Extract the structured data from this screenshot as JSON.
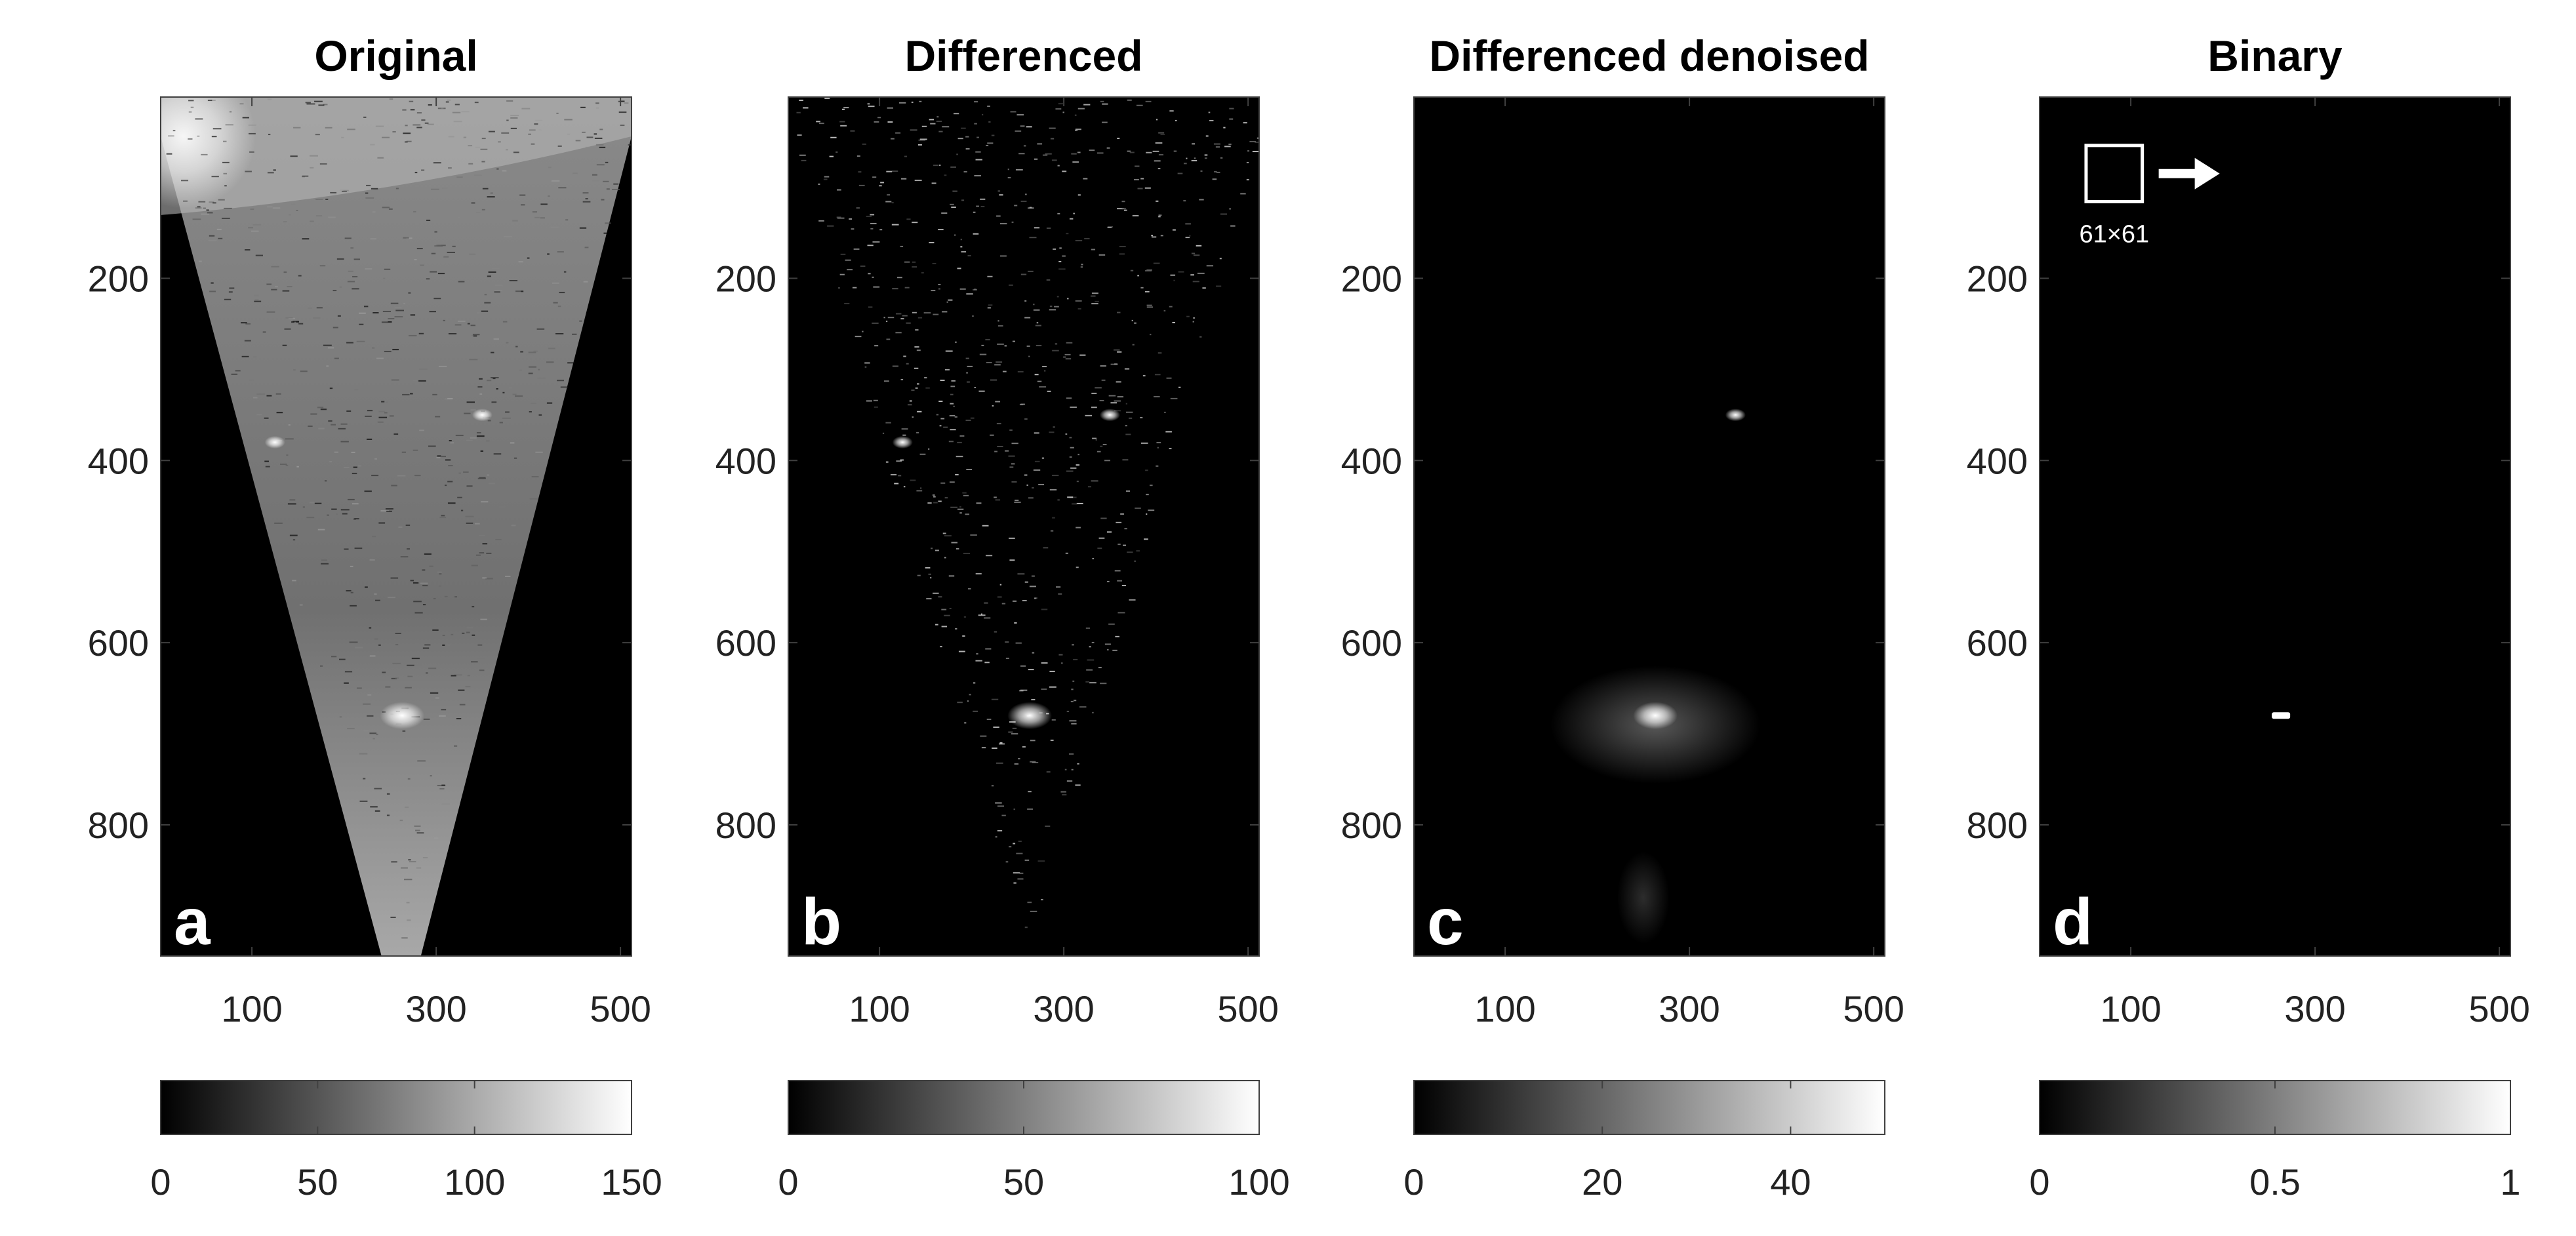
{
  "chart_data": [
    {
      "type": "heatmap",
      "title": "Original",
      "panel_label": "a",
      "xticks": [
        100,
        300,
        500
      ],
      "yticks": [
        200,
        400,
        600,
        800
      ],
      "xlim": [
        1,
        512
      ],
      "ylim": [
        1,
        944
      ],
      "colormap": "gray",
      "colorbar": {
        "min": 0,
        "max": 150,
        "ticks": [
          "0",
          "50",
          "100",
          "150"
        ]
      },
      "content": "sector",
      "bright_spots": [
        [
          350,
          350
        ],
        [
          263,
          680
        ],
        [
          125,
          380
        ]
      ],
      "annotation": null
    },
    {
      "type": "heatmap",
      "title": "Differenced",
      "panel_label": "b",
      "xticks": [
        100,
        300,
        500
      ],
      "yticks": [
        200,
        400,
        600,
        800
      ],
      "xlim": [
        1,
        512
      ],
      "ylim": [
        1,
        944
      ],
      "colormap": "gray",
      "colorbar": {
        "min": 0,
        "max": 100,
        "ticks": [
          "0",
          "50",
          "100"
        ]
      },
      "content": "speckle",
      "bright_spots": [
        [
          350,
          350
        ],
        [
          263,
          680
        ],
        [
          125,
          380
        ]
      ],
      "annotation": null
    },
    {
      "type": "heatmap",
      "title": "Differenced denoised",
      "panel_label": "c",
      "xticks": [
        100,
        300,
        500
      ],
      "yticks": [
        200,
        400,
        600,
        800
      ],
      "xlim": [
        1,
        512
      ],
      "ylim": [
        1,
        944
      ],
      "colormap": "gray",
      "colorbar": {
        "min": 0,
        "max": 50,
        "ticks": [
          "0",
          "20",
          "40"
        ]
      },
      "content": "denoised",
      "bright_spots": [
        [
          263,
          680
        ],
        [
          350,
          350
        ]
      ],
      "annotation": null
    },
    {
      "type": "heatmap",
      "title": "Binary",
      "panel_label": "d",
      "xticks": [
        100,
        300,
        500
      ],
      "yticks": [
        200,
        400,
        600,
        800
      ],
      "xlim": [
        1,
        512
      ],
      "ylim": [
        1,
        944
      ],
      "colormap": "gray",
      "colorbar": {
        "min": 0,
        "max": 1,
        "ticks": [
          "0",
          "0.5",
          "1"
        ]
      },
      "content": "binary",
      "bright_spots": [
        [
          263,
          680
        ]
      ],
      "annotation": {
        "label": "61×61",
        "box_size": 61,
        "box_center": [
          82,
          85
        ]
      }
    }
  ],
  "colors": {
    "background": "#000000",
    "foreground": "#ffffff",
    "axis": "#404040"
  }
}
